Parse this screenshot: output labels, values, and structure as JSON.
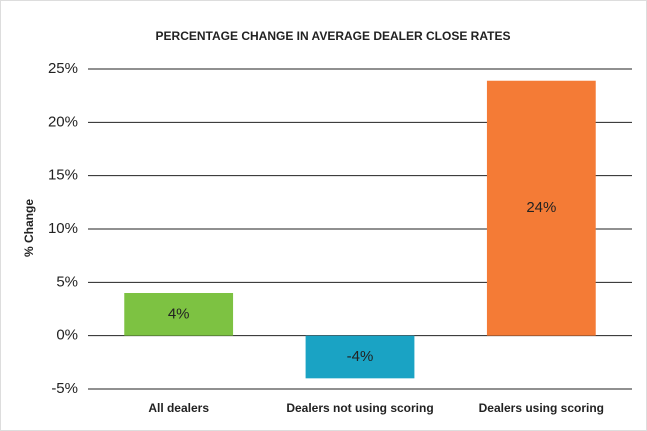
{
  "chart_data": {
    "type": "bar",
    "title": "PERCENTAGE CHANGE IN AVERAGE DEALER CLOSE RATES",
    "ylabel": "% Change",
    "categories": [
      "All dealers",
      "Dealers not using scoring",
      "Dealers using scoring"
    ],
    "values": [
      4,
      -4,
      23.9
    ],
    "value_labels": [
      "4%",
      "-4%",
      "24%"
    ],
    "colors": [
      "#7dc242",
      "#1aa3c4",
      "#f47b36"
    ],
    "ylim": [
      -5,
      25
    ],
    "yticks": [
      {
        "value": -5,
        "label": "-5%"
      },
      {
        "value": 0,
        "label": "0%"
      },
      {
        "value": 5,
        "label": "5%"
      },
      {
        "value": 10,
        "label": "10%"
      },
      {
        "value": 15,
        "label": "15%"
      },
      {
        "value": 20,
        "label": "20%"
      },
      {
        "value": 25,
        "label": "25%"
      }
    ],
    "grid": true
  }
}
